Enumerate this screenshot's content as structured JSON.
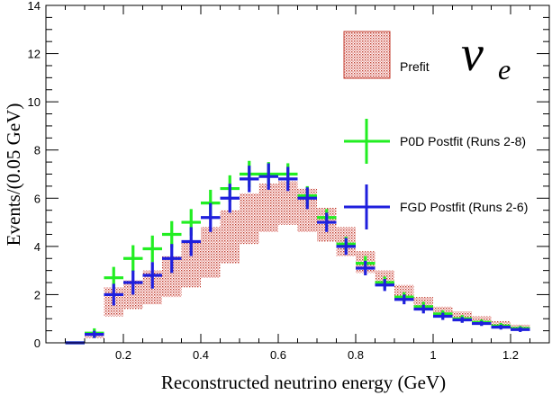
{
  "chart_data": {
    "type": "histogram",
    "xlabel": "Reconstructed neutrino energy (GeV)",
    "ylabel": "Events/(0.05 GeV)",
    "annotation": "ν",
    "annotation_sub": "e",
    "xlim": [
      0.0,
      1.3
    ],
    "ylim": [
      0,
      14
    ],
    "x_ticks": [
      0.2,
      0.4,
      0.6,
      0.8,
      1,
      1.2
    ],
    "y_ticks": [
      0,
      2,
      4,
      6,
      8,
      10,
      12,
      14
    ],
    "bin_edges": [
      0.05,
      0.1,
      0.15,
      0.2,
      0.25,
      0.3,
      0.35,
      0.4,
      0.45,
      0.5,
      0.55,
      0.6,
      0.65,
      0.7,
      0.75,
      0.8,
      0.85,
      0.9,
      0.95,
      1.0,
      1.05,
      1.1,
      1.15,
      1.2,
      1.25
    ],
    "legend": [
      {
        "label": "Prefit",
        "style": "band",
        "color": "#c0392b"
      },
      {
        "label": "P0D Postfit (Runs 2-8)",
        "style": "cross",
        "color": "#22ee22"
      },
      {
        "label": "FGD Postfit (Runs 2-6)",
        "style": "cross",
        "color": "#1f1fdd"
      }
    ],
    "series": [
      {
        "name": "Prefit",
        "color": "#c0392b",
        "low": [
          0.0,
          0.2,
          1.1,
          1.4,
          1.6,
          1.9,
          2.3,
          2.7,
          3.3,
          4.1,
          4.6,
          4.9,
          4.6,
          4.2,
          3.6,
          2.9,
          2.4,
          1.9,
          1.5,
          1.2,
          1.0,
          0.85,
          0.7,
          0.6,
          0.5
        ],
        "high": [
          0.0,
          0.3,
          2.3,
          2.6,
          3.0,
          3.6,
          4.2,
          4.8,
          5.5,
          6.2,
          6.6,
          6.7,
          6.4,
          5.6,
          4.8,
          3.8,
          3.0,
          2.4,
          1.9,
          1.5,
          1.3,
          1.1,
          0.9,
          0.75,
          0.6
        ]
      },
      {
        "name": "P0D Postfit (Runs 2-8)",
        "color": "#22ee22",
        "values": [
          0.0,
          0.4,
          2.7,
          3.5,
          3.9,
          4.5,
          5.0,
          5.8,
          6.4,
          7.0,
          7.0,
          7.0,
          6.1,
          5.2,
          4.1,
          3.3,
          2.5,
          1.9,
          1.5,
          1.2,
          1.0,
          0.85,
          0.7,
          0.6,
          0.45
        ],
        "errors": [
          0.0,
          0.2,
          0.45,
          0.55,
          0.55,
          0.55,
          0.55,
          0.55,
          0.55,
          0.55,
          0.5,
          0.45,
          0.4,
          0.35,
          0.3,
          0.3,
          0.25,
          0.2,
          0.2,
          0.15,
          0.15,
          0.12,
          0.12,
          0.1,
          0.1
        ]
      },
      {
        "name": "FGD Postfit (Runs 2-6)",
        "color": "#1f1fdd",
        "values": [
          0.0,
          0.35,
          2.0,
          2.5,
          2.8,
          3.5,
          4.2,
          5.2,
          6.0,
          6.8,
          6.9,
          6.8,
          6.0,
          5.0,
          4.0,
          3.1,
          2.4,
          1.8,
          1.4,
          1.1,
          0.95,
          0.8,
          0.65,
          0.55,
          0.4
        ],
        "errors": [
          0.0,
          0.15,
          0.45,
          0.5,
          0.55,
          0.6,
          0.6,
          0.6,
          0.6,
          0.55,
          0.55,
          0.5,
          0.45,
          0.4,
          0.35,
          0.3,
          0.25,
          0.2,
          0.18,
          0.15,
          0.12,
          0.1,
          0.1,
          0.1,
          0.1
        ]
      }
    ]
  }
}
